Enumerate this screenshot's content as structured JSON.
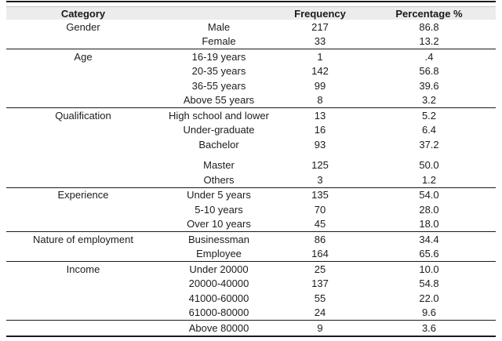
{
  "table": {
    "headers": {
      "category": "Category",
      "subcategory": "",
      "frequency": "Frequency",
      "percentage": "Percentage %"
    },
    "colors": {
      "header_background": "#ececec",
      "rule": "#1a1a1a",
      "text": "#1c1c1c"
    },
    "groups": [
      {
        "category": "Gender",
        "rows": [
          {
            "label": "Male",
            "frequency": "217",
            "percentage": "86.8"
          },
          {
            "label": "Female",
            "frequency": "33",
            "percentage": "13.2"
          }
        ]
      },
      {
        "category": "Age",
        "rows": [
          {
            "label": "16-19 years",
            "frequency": "1",
            "percentage": ".4"
          },
          {
            "label": "20-35 years",
            "frequency": "142",
            "percentage": "56.8"
          },
          {
            "label": "36-55 years",
            "frequency": "99",
            "percentage": "39.6"
          },
          {
            "label": "Above 55 years",
            "frequency": "8",
            "percentage": "3.2"
          }
        ]
      },
      {
        "category": "Qualification",
        "rows": [
          {
            "label": "High school and lower",
            "frequency": "13",
            "percentage": "5.2"
          },
          {
            "label": "Under-graduate",
            "frequency": "16",
            "percentage": "6.4"
          },
          {
            "label": "Bachelor",
            "frequency": "93",
            "percentage": "37.2"
          },
          {
            "label": "Master",
            "frequency": "125",
            "percentage": "50.0",
            "gap_before": true
          },
          {
            "label": "Others",
            "frequency": "3",
            "percentage": "1.2"
          }
        ]
      },
      {
        "category": "Experience",
        "rows": [
          {
            "label": "Under 5 years",
            "frequency": "135",
            "percentage": "54.0"
          },
          {
            "label": "5-10 years",
            "frequency": "70",
            "percentage": "28.0"
          },
          {
            "label": "Over 10 years",
            "frequency": "45",
            "percentage": "18.0"
          }
        ]
      },
      {
        "category": "Nature of employment",
        "rows": [
          {
            "label": "Businessman",
            "frequency": "86",
            "percentage": "34.4"
          },
          {
            "label": "Employee",
            "frequency": "164",
            "percentage": "65.6"
          }
        ]
      },
      {
        "category": "Income",
        "rows": [
          {
            "label": "Under 20000",
            "frequency": "25",
            "percentage": "10.0"
          },
          {
            "label": "20000-40000",
            "frequency": "137",
            "percentage": "54.8"
          },
          {
            "label": "41000-60000",
            "frequency": "55",
            "percentage": "22.0"
          },
          {
            "label": "61000-80000",
            "frequency": "24",
            "percentage": "9.6"
          }
        ]
      },
      {
        "category": "",
        "rows": [
          {
            "label": "Above 80000",
            "frequency": "9",
            "percentage": "3.6"
          }
        ]
      }
    ]
  }
}
